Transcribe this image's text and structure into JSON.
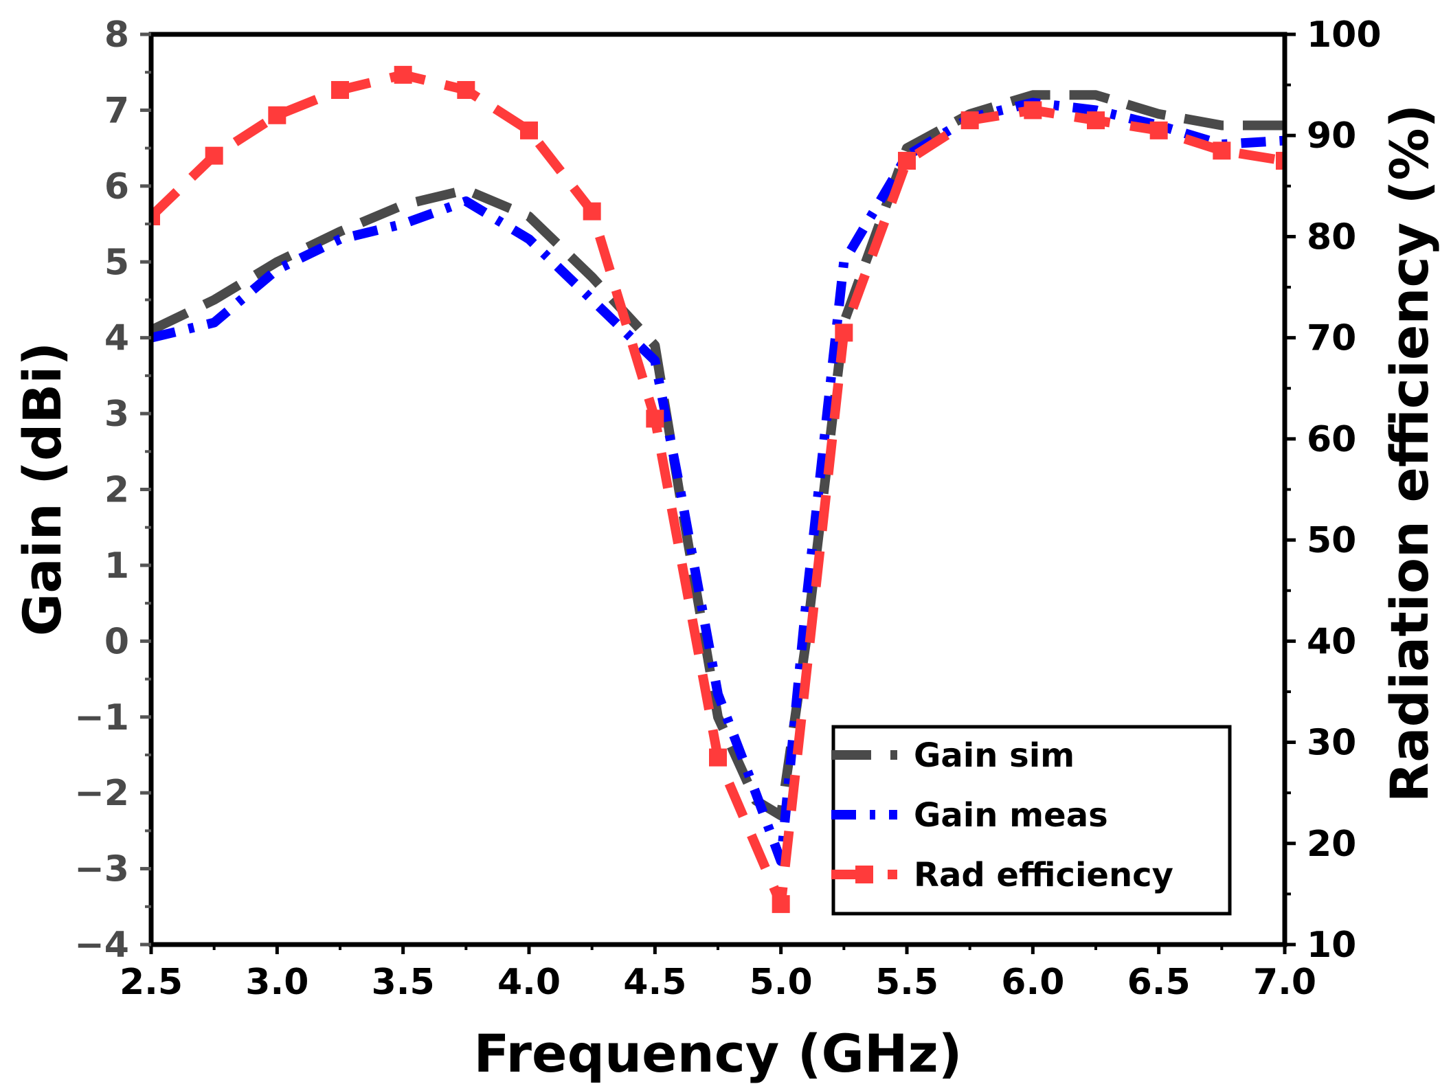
{
  "chart_data": {
    "type": "line",
    "xlabel": "Frequency (GHz)",
    "ylabel": "Gain (dBi)",
    "y2label": "Radiation efficiency (%)",
    "xlim": [
      2.5,
      7.0
    ],
    "ylim": [
      -4,
      8
    ],
    "y2lim": [
      10,
      100
    ],
    "x_ticks": [
      "2.5",
      "3.0",
      "3.5",
      "4.0",
      "4.5",
      "5.0",
      "5.5",
      "6.0",
      "6.5",
      "7.0"
    ],
    "y_ticks": [
      "8",
      "7",
      "6",
      "5",
      "4",
      "3",
      "2",
      "1",
      "0",
      "−1",
      "−2",
      "−3",
      "−4"
    ],
    "y2_ticks": [
      "100",
      "90",
      "80",
      "70",
      "60",
      "50",
      "40",
      "30",
      "20",
      "10"
    ],
    "legend_position": "bottom-right",
    "grid": false,
    "series": [
      {
        "name": "Gain sim",
        "axis": "left",
        "color": "#4a4a4a",
        "style": "dash",
        "x": [
          2.5,
          2.75,
          3.0,
          3.25,
          3.5,
          3.75,
          4.0,
          4.25,
          4.5,
          4.6,
          4.75,
          4.9,
          5.0,
          5.1,
          5.25,
          5.5,
          5.75,
          6.0,
          6.25,
          6.5,
          6.75,
          7.0
        ],
        "y": [
          4.1,
          4.5,
          5.0,
          5.4,
          5.75,
          5.95,
          5.6,
          4.8,
          3.9,
          1.9,
          -1.0,
          -2.1,
          -2.3,
          0.0,
          4.2,
          6.5,
          6.95,
          7.2,
          7.2,
          6.95,
          6.8,
          6.8
        ]
      },
      {
        "name": "Gain meas",
        "axis": "left",
        "color": "#0000ff",
        "style": "dashdot",
        "x": [
          2.5,
          2.75,
          3.0,
          3.25,
          3.5,
          3.75,
          4.0,
          4.25,
          4.5,
          4.6,
          4.75,
          4.9,
          5.0,
          5.1,
          5.25,
          5.5,
          5.75,
          6.0,
          6.25,
          6.5,
          6.75,
          7.0
        ],
        "y": [
          4.0,
          4.2,
          4.9,
          5.3,
          5.5,
          5.8,
          5.3,
          4.5,
          3.7,
          2.0,
          -0.7,
          -2.0,
          -2.9,
          0.5,
          5.0,
          6.4,
          6.9,
          7.1,
          7.0,
          6.8,
          6.55,
          6.6
        ]
      },
      {
        "name": "Rad efficiency",
        "axis": "right",
        "color": "#ff3b3b",
        "style": "dash-marker",
        "x": [
          2.5,
          2.75,
          3.0,
          3.25,
          3.5,
          3.75,
          4.0,
          4.25,
          4.5,
          4.75,
          5.0,
          5.25,
          5.5,
          5.75,
          6.0,
          6.25,
          6.5,
          6.75,
          7.0
        ],
        "y": [
          82,
          88,
          92,
          94.5,
          96,
          94.5,
          90.5,
          82.5,
          62,
          28.5,
          14,
          70.5,
          87.5,
          91.5,
          92.5,
          91.5,
          90.5,
          88.5,
          87.5
        ]
      }
    ]
  }
}
